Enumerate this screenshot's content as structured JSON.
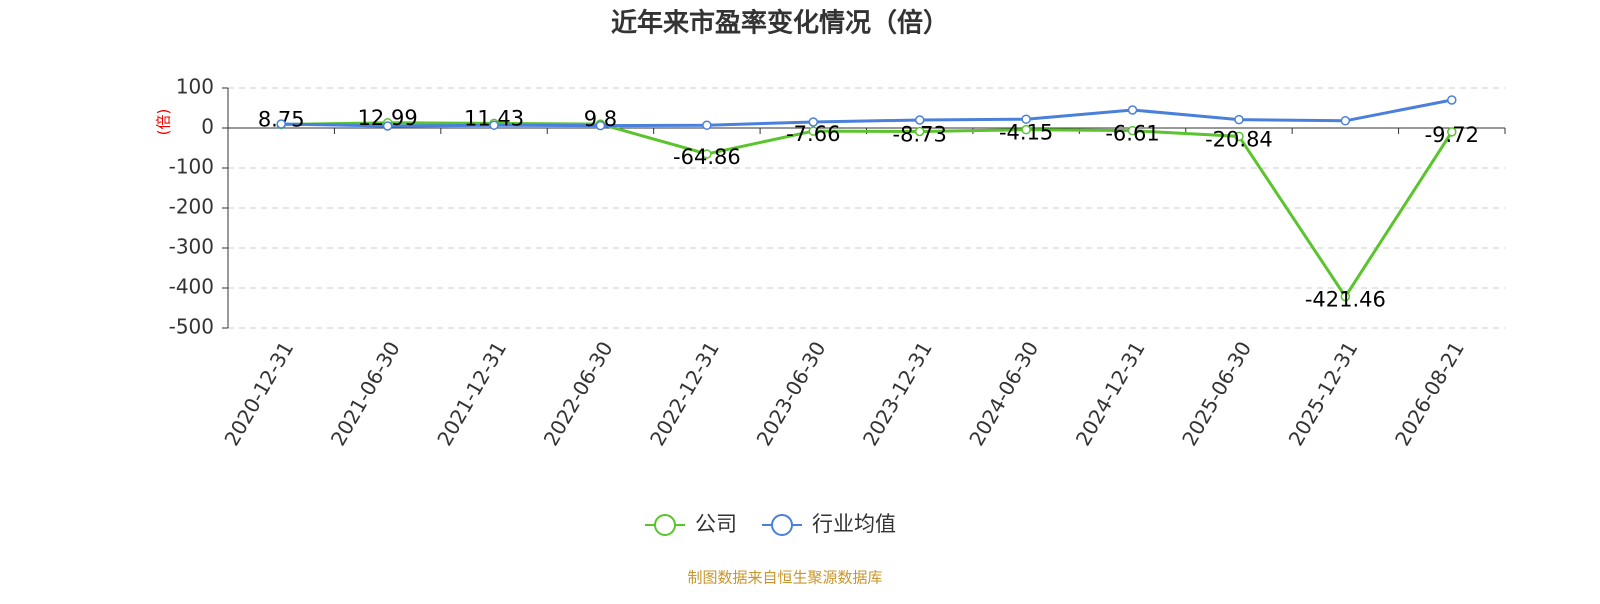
{
  "chart_data": {
    "type": "line",
    "title": "近年来市盈率变化情况（倍）",
    "y_label": "(倍)",
    "categories": [
      "2020-12-31",
      "2021-06-30",
      "2021-12-31",
      "2022-06-30",
      "2022-12-31",
      "2023-06-30",
      "2023-12-31",
      "2024-06-30",
      "2024-12-31",
      "2025-06-30",
      "2025-12-31",
      "2026-08-21"
    ],
    "series": [
      {
        "name": "公司",
        "color": "#5ac42c",
        "values": [
          8.75,
          12.99,
          11.43,
          9.8,
          -64.86,
          -7.66,
          -8.73,
          -4.15,
          -6.61,
          -20.84,
          -421.46,
          -9.72
        ],
        "labels": true
      },
      {
        "name": "行业均值",
        "color": "#4a80dc",
        "values": [
          10,
          5,
          7,
          6,
          7,
          15,
          20,
          22,
          45,
          21,
          18,
          70
        ],
        "labels": false
      }
    ],
    "ylim": [
      -500,
      100
    ],
    "yticks": [
      -500,
      -400,
      -300,
      -200,
      -100,
      0,
      100
    ],
    "grid": true,
    "source": "制图数据来自恒生聚源数据库"
  }
}
